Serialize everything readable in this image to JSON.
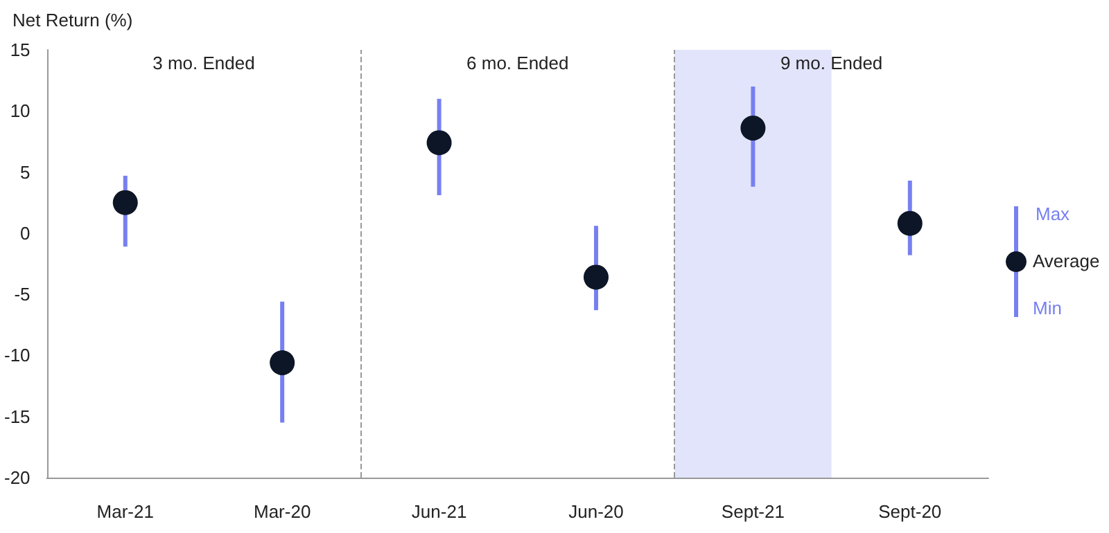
{
  "chart_data": {
    "type": "scatter",
    "ylabel": "Net Return (%)",
    "categories": [
      "Mar-21",
      "Mar-20",
      "Jun-21",
      "Jun-20",
      "Sept-21",
      "Sept-20"
    ],
    "series": [
      {
        "name": "Average",
        "color": "#0d1626",
        "values": [
          2.5,
          -10.6,
          7.4,
          -3.6,
          8.6,
          0.8
        ],
        "errors": [
          [
            -1.1,
            4.7
          ],
          [
            -15.5,
            -5.6
          ],
          [
            3.1,
            11.0
          ],
          [
            -6.3,
            0.6
          ],
          [
            3.8,
            12.0
          ],
          [
            -1.8,
            4.3
          ]
        ]
      }
    ],
    "ylim": [
      -20,
      15
    ],
    "yticks": [
      -20,
      -15,
      -10,
      -5,
      0,
      5,
      10,
      15
    ],
    "bands": [
      {
        "axis": "x",
        "from": "Sept-21",
        "to": "Sept-21",
        "color": "#e2e4fb"
      }
    ],
    "annotations": [
      "3 mo. Ended",
      "6 mo. Ended",
      "9 mo. Ended",
      "Max",
      "Min"
    ],
    "legend": "right",
    "grid": false,
    "marker": "circle"
  }
}
